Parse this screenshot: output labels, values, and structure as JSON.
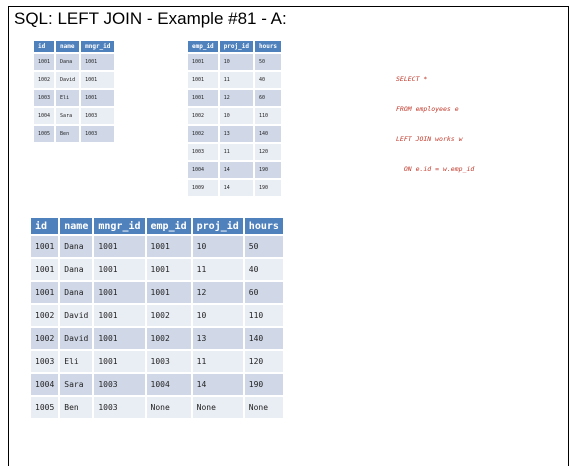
{
  "title": "SQL: LEFT JOIN - Example #81 - A:",
  "sql_lines": [
    "SELECT *",
    "FROM employees e",
    "LEFT JOIN works w",
    "  ON e.id = w.emp_id"
  ],
  "employees": {
    "headers": [
      "id",
      "name",
      "mngr_id"
    ],
    "rows": [
      [
        "1001",
        "Dana",
        "1001"
      ],
      [
        "1002",
        "David",
        "1001"
      ],
      [
        "1003",
        "Eli",
        "1001"
      ],
      [
        "1004",
        "Sara",
        "1003"
      ],
      [
        "1005",
        "Ben",
        "1003"
      ]
    ]
  },
  "works": {
    "headers": [
      "emp_id",
      "proj_id",
      "hours"
    ],
    "rows": [
      [
        "1001",
        "10",
        "50"
      ],
      [
        "1001",
        "11",
        "40"
      ],
      [
        "1001",
        "12",
        "60"
      ],
      [
        "1002",
        "10",
        "110"
      ],
      [
        "1002",
        "13",
        "140"
      ],
      [
        "1003",
        "11",
        "120"
      ],
      [
        "1004",
        "14",
        "190"
      ],
      [
        "1009",
        "14",
        "190"
      ]
    ]
  },
  "result": {
    "headers": [
      "id",
      "name",
      "mngr_id",
      "emp_id",
      "proj_id",
      "hours"
    ],
    "rows": [
      [
        "1001",
        "Dana",
        "1001",
        "1001",
        "10",
        "50"
      ],
      [
        "1001",
        "Dana",
        "1001",
        "1001",
        "11",
        "40"
      ],
      [
        "1001",
        "Dana",
        "1001",
        "1001",
        "12",
        "60"
      ],
      [
        "1002",
        "David",
        "1001",
        "1002",
        "10",
        "110"
      ],
      [
        "1002",
        "David",
        "1001",
        "1002",
        "13",
        "140"
      ],
      [
        "1003",
        "Eli",
        "1001",
        "1003",
        "11",
        "120"
      ],
      [
        "1004",
        "Sara",
        "1003",
        "1004",
        "14",
        "190"
      ],
      [
        "1005",
        "Ben",
        "1003",
        "None",
        "None",
        "None"
      ]
    ]
  },
  "colors": {
    "header_bg": "#4f81bd",
    "row_odd": "#d0d8e8",
    "row_even": "#e9edf4",
    "sql_text": "#c0392b"
  }
}
